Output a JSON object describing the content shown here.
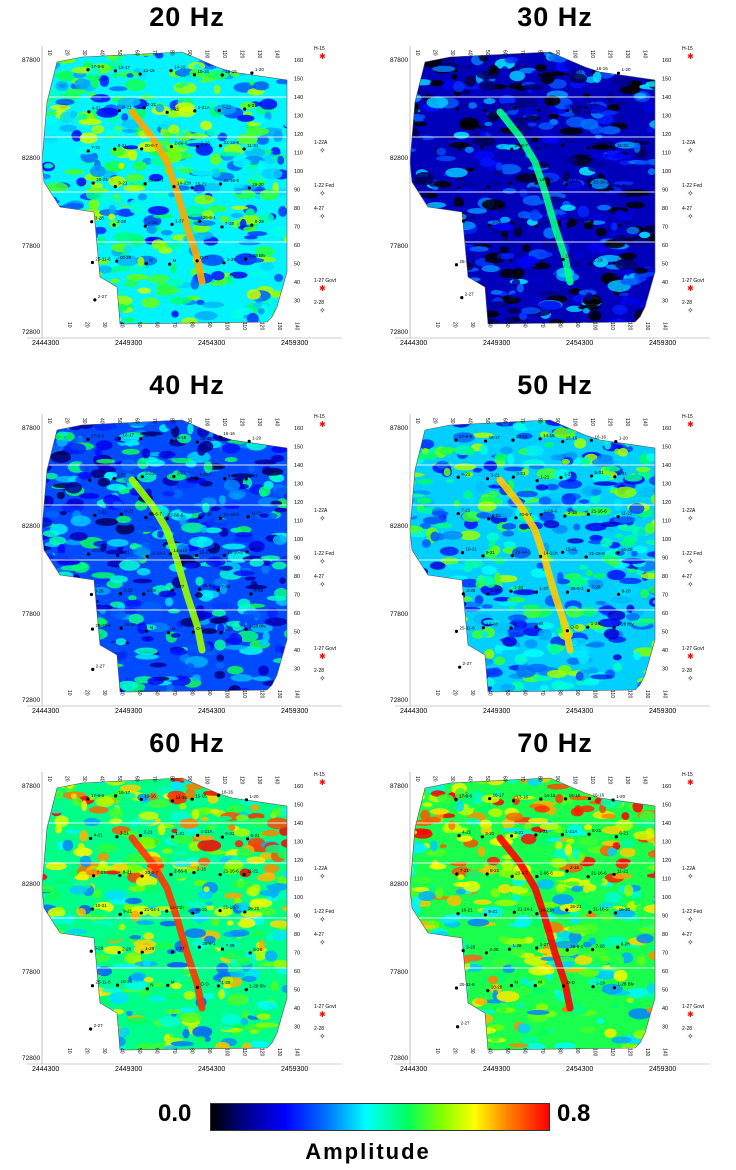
{
  "panels": [
    {
      "title": "20 Hz",
      "y_top_label": "87800",
      "bottom_level": 0.45
    },
    {
      "title": "30 Hz",
      "y_top_label": "87800",
      "bottom_level": 0.15
    },
    {
      "title": "40 Hz",
      "y_top_label": "87800",
      "bottom_level": 0.3
    },
    {
      "title": "50 Hz",
      "y_top_label": "87800",
      "bottom_level": 0.42
    },
    {
      "title": "60 Hz",
      "y_top_label": "87800",
      "bottom_level": 0.55
    },
    {
      "title": "70 Hz",
      "y_top_label": "87800",
      "bottom_level": 0.6
    }
  ],
  "axes": {
    "x_ticks": [
      "2444300",
      "2449300",
      "2454300",
      "2459300"
    ],
    "y_ticks": [
      "82800",
      "77800",
      "72800"
    ],
    "top_ticks": [
      "10",
      "20",
      "30",
      "40",
      "50",
      "60",
      "70",
      "80",
      "90",
      "100",
      "110",
      "120",
      "130",
      "140"
    ],
    "right_ticks": [
      "160",
      "150",
      "140",
      "130",
      "120",
      "110",
      "100",
      "90",
      "80",
      "70",
      "60",
      "50",
      "40",
      "30"
    ]
  },
  "wells_right": [
    "H-15",
    "1-22A",
    "1-22 Fed",
    "4-27",
    "1-27 Govt",
    "2-28"
  ],
  "wells_inside": [
    "17-9-6",
    "16-17",
    "13-16",
    "14-16",
    "15-16",
    "16-16",
    "1-20",
    "4-21",
    "3-21",
    "2-21",
    "1-21",
    "1-21A",
    "5-21",
    "6-21",
    "7-21",
    "8-21",
    "20-6-7",
    "2-66-6",
    "2-16",
    "21-16-6",
    "11-21",
    "10-21",
    "9-21",
    "21-14-1",
    "14-21h",
    "15-21",
    "21-16-9",
    "16-20",
    "3-28",
    "2-28",
    "1-28",
    "1-27",
    "26-6-1",
    "7-28",
    "8-28",
    "25-11-6",
    "10-28",
    "N",
    "M",
    "O-D",
    "1-29",
    "1-28 Blv",
    "2-27"
  ],
  "colorbar": {
    "min": "0.0",
    "max": "0.8",
    "label": "Amplitude"
  }
}
